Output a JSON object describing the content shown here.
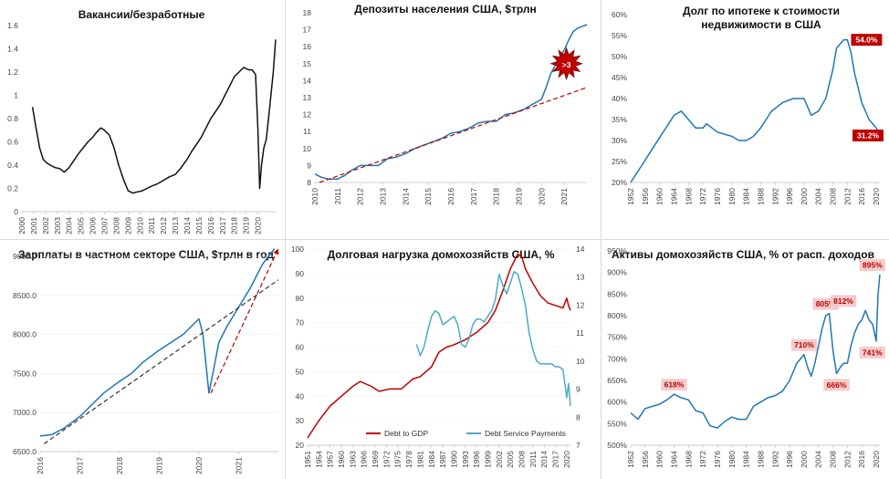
{
  "colors": {
    "dark_red": "#c00000",
    "blue": "#1f77b4",
    "light_blue": "#4bacc6",
    "black": "#111111",
    "callout_bg": "#f4cccc",
    "callout_text": "#c00000"
  },
  "chart_data": [
    {
      "id": "vacancies",
      "type": "line",
      "title": "Вакансии/безработные",
      "ylim": [
        0,
        1.6
      ],
      "yticks": [
        0,
        0.2,
        0.4,
        0.6,
        0.8,
        1,
        1.2,
        1.4,
        1.6
      ],
      "xlim": [
        2000,
        2021.5
      ],
      "xticks": [
        2000,
        2001,
        2002,
        2003,
        2004,
        2005,
        2006,
        2007,
        2008,
        2009,
        2010,
        2011,
        2012,
        2013,
        2014,
        2015,
        2016,
        2017,
        2018,
        2019,
        2020
      ],
      "x_tick_rotation": -90,
      "series": [
        {
          "color": "#111111",
          "x": [
            2000.9,
            2001.2,
            2001.5,
            2001.8,
            2002.1,
            2002.4,
            2002.8,
            2003.2,
            2003.6,
            2004.0,
            2004.4,
            2004.8,
            2005.2,
            2005.6,
            2006.0,
            2006.3,
            2006.7,
            2007.0,
            2007.4,
            2007.8,
            2008.2,
            2008.6,
            2009.0,
            2009.4,
            2009.8,
            2010.2,
            2010.6,
            2011.0,
            2011.5,
            2012.0,
            2012.5,
            2013.0,
            2013.5,
            2014.0,
            2014.4,
            2014.8,
            2015.2,
            2015.6,
            2016.0,
            2016.4,
            2016.8,
            2017.2,
            2017.6,
            2018.0,
            2018.4,
            2018.8,
            2019.2,
            2019.5,
            2019.8,
            2020.0,
            2020.15,
            2020.3,
            2020.5,
            2020.7,
            2020.9,
            2021.1,
            2021.3,
            2021.5
          ],
          "y": [
            0.9,
            0.72,
            0.55,
            0.45,
            0.42,
            0.4,
            0.38,
            0.37,
            0.34,
            0.38,
            0.44,
            0.5,
            0.55,
            0.6,
            0.64,
            0.68,
            0.72,
            0.7,
            0.66,
            0.55,
            0.4,
            0.28,
            0.18,
            0.16,
            0.17,
            0.18,
            0.2,
            0.22,
            0.24,
            0.27,
            0.3,
            0.32,
            0.38,
            0.45,
            0.52,
            0.58,
            0.64,
            0.72,
            0.8,
            0.86,
            0.92,
            1.0,
            1.08,
            1.16,
            1.2,
            1.24,
            1.22,
            1.22,
            1.18,
            0.7,
            0.2,
            0.4,
            0.55,
            0.62,
            0.8,
            1.0,
            1.2,
            1.48
          ]
        }
      ]
    },
    {
      "id": "deposits",
      "type": "line",
      "title": "Депозиты населения США, $трлн",
      "ylim": [
        8,
        18
      ],
      "yticks": [
        8,
        9,
        10,
        11,
        12,
        13,
        14,
        15,
        16,
        17,
        18
      ],
      "xlim": [
        2010,
        2022
      ],
      "xticks": [
        2010,
        2011,
        2012,
        2013,
        2014,
        2015,
        2016,
        2017,
        2018,
        2019,
        2020,
        2021
      ],
      "x_tick_rotation": -90,
      "annotation": ">3",
      "series": [
        {
          "color": "#1f77b4",
          "x": [
            2010.0,
            2010.3,
            2010.6,
            2011.0,
            2011.3,
            2011.6,
            2012.0,
            2012.4,
            2012.8,
            2013.2,
            2013.6,
            2014.0,
            2014.4,
            2014.8,
            2015.2,
            2015.6,
            2016.0,
            2016.4,
            2016.8,
            2017.2,
            2017.6,
            2018.0,
            2018.4,
            2018.8,
            2019.2,
            2019.6,
            2020.0,
            2020.2,
            2020.4,
            2020.6,
            2020.8,
            2021.0,
            2021.2,
            2021.4,
            2021.6,
            2021.8,
            2022.0
          ],
          "y": [
            8.5,
            8.3,
            8.2,
            8.2,
            8.4,
            8.7,
            9.0,
            9.0,
            9.0,
            9.4,
            9.5,
            9.7,
            10.0,
            10.2,
            10.4,
            10.6,
            10.9,
            11.0,
            11.2,
            11.5,
            11.6,
            11.6,
            12.0,
            12.1,
            12.3,
            12.6,
            12.9,
            13.6,
            14.4,
            14.9,
            15.3,
            15.8,
            16.4,
            16.9,
            17.1,
            17.2,
            17.3
          ]
        },
        {
          "color": "#c00000",
          "dashed": true,
          "x": [
            2010.2,
            2022.0
          ],
          "y": [
            8.0,
            13.6
          ]
        }
      ]
    },
    {
      "id": "mortgage",
      "type": "line",
      "title": "Долг по ипотеке к стоимости недвижимости в США",
      "title_lines": [
        "Долг по ипотеке к стоимости",
        "недвижимости в США"
      ],
      "ylim": [
        20,
        60
      ],
      "yticks": [
        "20%",
        "25%",
        "30%",
        "35%",
        "40%",
        "45%",
        "50%",
        "55%",
        "60%"
      ],
      "ytick_values": [
        20,
        25,
        30,
        35,
        40,
        45,
        50,
        55,
        60
      ],
      "xlim": [
        1952,
        2021
      ],
      "xticks": [
        1952,
        1956,
        1960,
        1964,
        1968,
        1972,
        1976,
        1980,
        1984,
        1988,
        1992,
        1996,
        2000,
        2004,
        2008,
        2012,
        2016,
        2020
      ],
      "x_tick_rotation": -90,
      "annotations": [
        {
          "label": "54.0%",
          "x": 2011.5,
          "y": 54.0
        },
        {
          "label": "31.2%",
          "x": 2021,
          "y": 31.2
        }
      ],
      "series": [
        {
          "color": "#1f77b4",
          "x": [
            1952,
            1955,
            1958,
            1961,
            1964,
            1966,
            1968,
            1970,
            1972,
            1973,
            1976,
            1980,
            1982,
            1984,
            1986,
            1988,
            1991,
            1994,
            1997,
            2000,
            2002,
            2004,
            2006,
            2008,
            2009,
            2010,
            2011,
            2012,
            2013,
            2014,
            2016,
            2018,
            2020,
            2021
          ],
          "y": [
            20,
            24,
            28,
            32,
            36,
            37,
            35,
            33,
            33,
            34,
            32,
            31,
            30,
            30,
            31,
            33,
            37,
            39,
            40,
            40,
            36,
            37,
            40,
            47,
            52,
            53,
            54,
            54,
            51,
            46,
            39,
            35,
            33,
            31.2
          ]
        }
      ]
    },
    {
      "id": "wages",
      "type": "line",
      "title": "Зарплаты в частном секторе США, $трлн в год",
      "ylim": [
        6500,
        9000
      ],
      "yticks": [
        "6500.0",
        "7000.0",
        "7500.0",
        "8000.0",
        "8500.0",
        "9000.0"
      ],
      "ytick_values": [
        6500,
        7000,
        7500,
        8000,
        8500,
        9000
      ],
      "xlim": [
        2016,
        2022
      ],
      "xticks": [
        2016,
        2017,
        2018,
        2019,
        2020,
        2021
      ],
      "x_tick_rotation": -90,
      "series": [
        {
          "color": "#1f77b4",
          "x": [
            2016.0,
            2016.3,
            2016.6,
            2017.0,
            2017.3,
            2017.6,
            2018.0,
            2018.3,
            2018.6,
            2019.0,
            2019.3,
            2019.6,
            2020.0,
            2020.1,
            2020.25,
            2020.35,
            2020.5,
            2020.7,
            2021.0,
            2021.3,
            2021.6,
            2021.9
          ],
          "y": [
            6700,
            6720,
            6800,
            6950,
            7100,
            7250,
            7400,
            7500,
            7650,
            7800,
            7900,
            8000,
            8200,
            8000,
            7250,
            7500,
            7900,
            8100,
            8350,
            8600,
            8900,
            9100
          ]
        },
        {
          "color": "#333333",
          "dashed": true,
          "x": [
            2016.1,
            2022.0
          ],
          "y": [
            6600,
            8700
          ]
        },
        {
          "color": "#c00000",
          "dashed": true,
          "arrow": true,
          "x": [
            2020.3,
            2022.0
          ],
          "y": [
            7250,
            9100
          ]
        }
      ]
    },
    {
      "id": "debt_burden",
      "type": "line",
      "title": "Долговая нагрузка домохозяйств США, %",
      "ylim": [
        20,
        100
      ],
      "yticks": [
        20,
        30,
        40,
        50,
        60,
        70,
        80,
        90,
        100
      ],
      "y2lim": [
        7,
        14
      ],
      "y2ticks": [
        7,
        8,
        9,
        10,
        11,
        12,
        13,
        14
      ],
      "xlim": [
        1951,
        2021
      ],
      "xticks": [
        1951,
        1954,
        1957,
        1960,
        1963,
        1966,
        1969,
        1972,
        1975,
        1978,
        1981,
        1984,
        1987,
        1990,
        1993,
        1996,
        1999,
        2002,
        2005,
        2008,
        2011,
        2014,
        2017,
        2020
      ],
      "x_tick_rotation": -90,
      "legend": "bottom",
      "series": [
        {
          "name": "Debt to GDP",
          "color": "#c00000",
          "axis": "left",
          "x": [
            1951,
            1954,
            1957,
            1960,
            1963,
            1965,
            1968,
            1970,
            1973,
            1976,
            1979,
            1981,
            1984,
            1986,
            1988,
            1990,
            1993,
            1996,
            1999,
            2001,
            2003,
            2005,
            2007,
            2008,
            2009,
            2011,
            2013,
            2015,
            2017,
            2019,
            2020,
            2020.5,
            2021
          ],
          "y": [
            23,
            30,
            36,
            40,
            44,
            46,
            44,
            42,
            43,
            43,
            47,
            48,
            52,
            58,
            60,
            61,
            63,
            66,
            70,
            75,
            83,
            92,
            98,
            97,
            92,
            86,
            81,
            78,
            77,
            76,
            80,
            77,
            75
          ]
        },
        {
          "name": "Debt Service Payments",
          "color": "#4bacc6",
          "axis": "right",
          "x": [
            1980,
            1981,
            1982,
            1983,
            1984,
            1985,
            1986,
            1987,
            1988,
            1989,
            1990,
            1991,
            1992,
            1993,
            1994,
            1995,
            1996,
            1997,
            1998,
            1999,
            2000,
            2001,
            2002,
            2003,
            2004,
            2005,
            2006,
            2007,
            2008,
            2009,
            2010,
            2011,
            2012,
            2013,
            2014,
            2015,
            2016,
            2017,
            2018,
            2019,
            2020,
            2020.5,
            2021
          ],
          "y": [
            10.6,
            10.2,
            10.5,
            11.1,
            11.6,
            11.8,
            11.7,
            11.3,
            11.4,
            11.5,
            11.6,
            11.3,
            10.6,
            10.5,
            10.8,
            11.3,
            11.5,
            11.5,
            11.4,
            11.6,
            11.8,
            12.2,
            13.1,
            12.7,
            12.4,
            12.8,
            13.2,
            13.1,
            12.6,
            12.0,
            11.0,
            10.4,
            10.0,
            9.9,
            9.9,
            9.9,
            9.9,
            9.8,
            9.8,
            9.7,
            8.7,
            9.2,
            8.4
          ]
        }
      ]
    },
    {
      "id": "assets",
      "type": "line",
      "title": "Активы домохозяйств США, % от расп. доходов",
      "ylim": [
        500,
        950
      ],
      "yticks": [
        "500%",
        "550%",
        "600%",
        "650%",
        "700%",
        "750%",
        "800%",
        "850%",
        "900%",
        "950%"
      ],
      "ytick_values": [
        500,
        550,
        600,
        650,
        700,
        750,
        800,
        850,
        900,
        950
      ],
      "xlim": [
        1952,
        2021
      ],
      "xticks": [
        1952,
        1956,
        1960,
        1964,
        1968,
        1972,
        1976,
        1980,
        1984,
        1988,
        1992,
        1996,
        2000,
        2004,
        2008,
        2012,
        2016,
        2020
      ],
      "x_tick_rotation": -90,
      "annotations": [
        {
          "label": "618%",
          "x": 1964,
          "y": 618
        },
        {
          "label": "710%",
          "x": 2000,
          "y": 710
        },
        {
          "label": "805%",
          "x": 2006,
          "y": 805
        },
        {
          "label": "666%",
          "x": 2009,
          "y": 666
        },
        {
          "label": "812%",
          "x": 2015,
          "y": 812
        },
        {
          "label": "741%",
          "x": 2020,
          "y": 741
        },
        {
          "label": "895%",
          "x": 2021,
          "y": 895
        }
      ],
      "series": [
        {
          "color": "#1f77b4",
          "x": [
            1952,
            1954,
            1956,
            1958,
            1960,
            1962,
            1964,
            1966,
            1968,
            1970,
            1972,
            1974,
            1976,
            1978,
            1980,
            1982,
            1984,
            1986,
            1988,
            1990,
            1992,
            1994,
            1996,
            1998,
            2000,
            2001,
            2002,
            2003,
            2004,
            2005,
            2006,
            2007,
            2008,
            2009,
            2010,
            2011,
            2012,
            2013,
            2014,
            2015,
            2016,
            2017,
            2018,
            2019,
            2020,
            2020.5,
            2021
          ],
          "y": [
            575,
            560,
            585,
            590,
            595,
            605,
            618,
            610,
            605,
            580,
            575,
            545,
            540,
            555,
            565,
            560,
            560,
            590,
            600,
            610,
            615,
            625,
            650,
            690,
            710,
            680,
            660,
            690,
            730,
            770,
            800,
            805,
            720,
            666,
            680,
            690,
            690,
            730,
            760,
            780,
            790,
            812,
            790,
            780,
            741,
            850,
            895
          ]
        }
      ]
    }
  ]
}
